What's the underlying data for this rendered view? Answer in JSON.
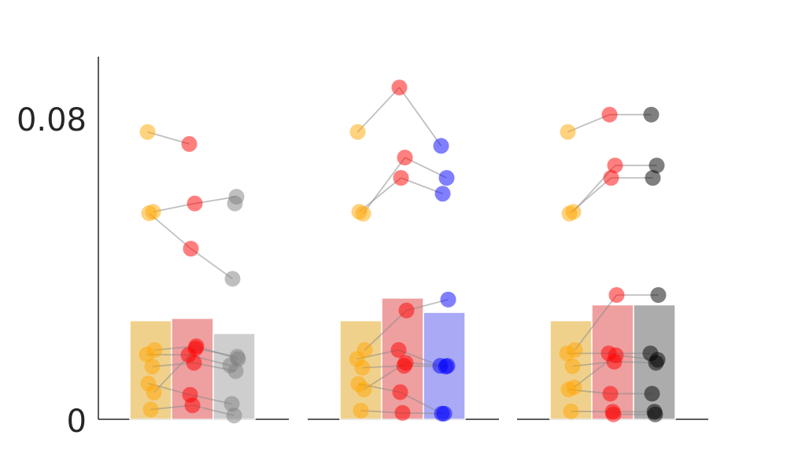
{
  "chart_data": {
    "type": "bar",
    "ylim": [
      0,
      0.1
    ],
    "yticks": [
      {
        "value": 0,
        "label": "0"
      },
      {
        "value": 0.08,
        "label": "0.08"
      }
    ],
    "grid": false,
    "panels": [
      {
        "bars": [
          {
            "value": 0.0262,
            "color": "#e8b94f"
          },
          {
            "value": 0.0268,
            "color": "#e56b6b"
          },
          {
            "value": 0.0228,
            "color": "#b3b3b3"
          }
        ],
        "dot_colors": [
          "#ffa500",
          "#ff0000",
          "#808080"
        ],
        "subjects": [
          [
            0.0763,
            0.0731,
            null
          ],
          [
            0.0551,
            0.0573,
            0.0591
          ],
          [
            0.0547,
            0.0453,
            0.0373
          ],
          [
            0.0184,
            0.0194,
            0.016
          ],
          [
            0.0172,
            0.0171,
            0.0143
          ],
          [
            0.014,
            0.015,
            0.0128
          ],
          [
            0.0095,
            0.0065,
            0.0041
          ],
          [
            0.0071,
            0.0188,
            0.0166
          ],
          [
            0.0026,
            0.0037,
            0.001
          ],
          [
            null,
            null,
            0.0573
          ]
        ]
      },
      {
        "bars": [
          {
            "value": 0.0262,
            "color": "#e8b94f"
          },
          {
            "value": 0.0322,
            "color": "#e56b6b"
          },
          {
            "value": 0.0284,
            "color": "#7b7bf0"
          }
        ],
        "dot_colors": [
          "#ffa500",
          "#ff0000",
          "#0000ff"
        ],
        "subjects": [
          [
            0.0763,
            0.0881,
            0.0726
          ],
          [
            0.0546,
            0.0695,
            0.0641
          ],
          [
            0.0551,
            0.0641,
            0.0599
          ],
          [
            0.0184,
            0.0289,
            0.0318
          ],
          [
            0.016,
            0.0184,
            0.0142
          ],
          [
            0.0137,
            0.0142,
            0.014
          ],
          [
            0.0094,
            0.0072,
            0.0015
          ],
          [
            0.0079,
            0.015,
            0.0142
          ],
          [
            0.0023,
            0.0017,
            0.0015
          ]
        ]
      },
      {
        "bars": [
          {
            "value": 0.0262,
            "color": "#e8b94f"
          },
          {
            "value": 0.0304,
            "color": "#e56b6b"
          },
          {
            "value": 0.0304,
            "color": "#808080"
          }
        ],
        "dot_colors": [
          "#ffa500",
          "#ff0000",
          "#000000"
        ],
        "subjects": [
          [
            0.0763,
            0.0809,
            0.0809
          ],
          [
            0.0551,
            0.0674,
            0.0674
          ],
          [
            0.0546,
            0.0641,
            0.0641
          ],
          [
            0.0184,
            0.033,
            0.033
          ],
          [
            0.0175,
            0.0175,
            0.0175
          ],
          [
            0.0141,
            0.0153,
            0.015
          ],
          [
            0.0079,
            0.0068,
            0.0068
          ],
          [
            0.0085,
            0.017,
            0.0158
          ],
          [
            0.0021,
            0.002,
            0.002
          ],
          [
            null,
            0.0013,
            0.0013
          ]
        ]
      }
    ]
  }
}
